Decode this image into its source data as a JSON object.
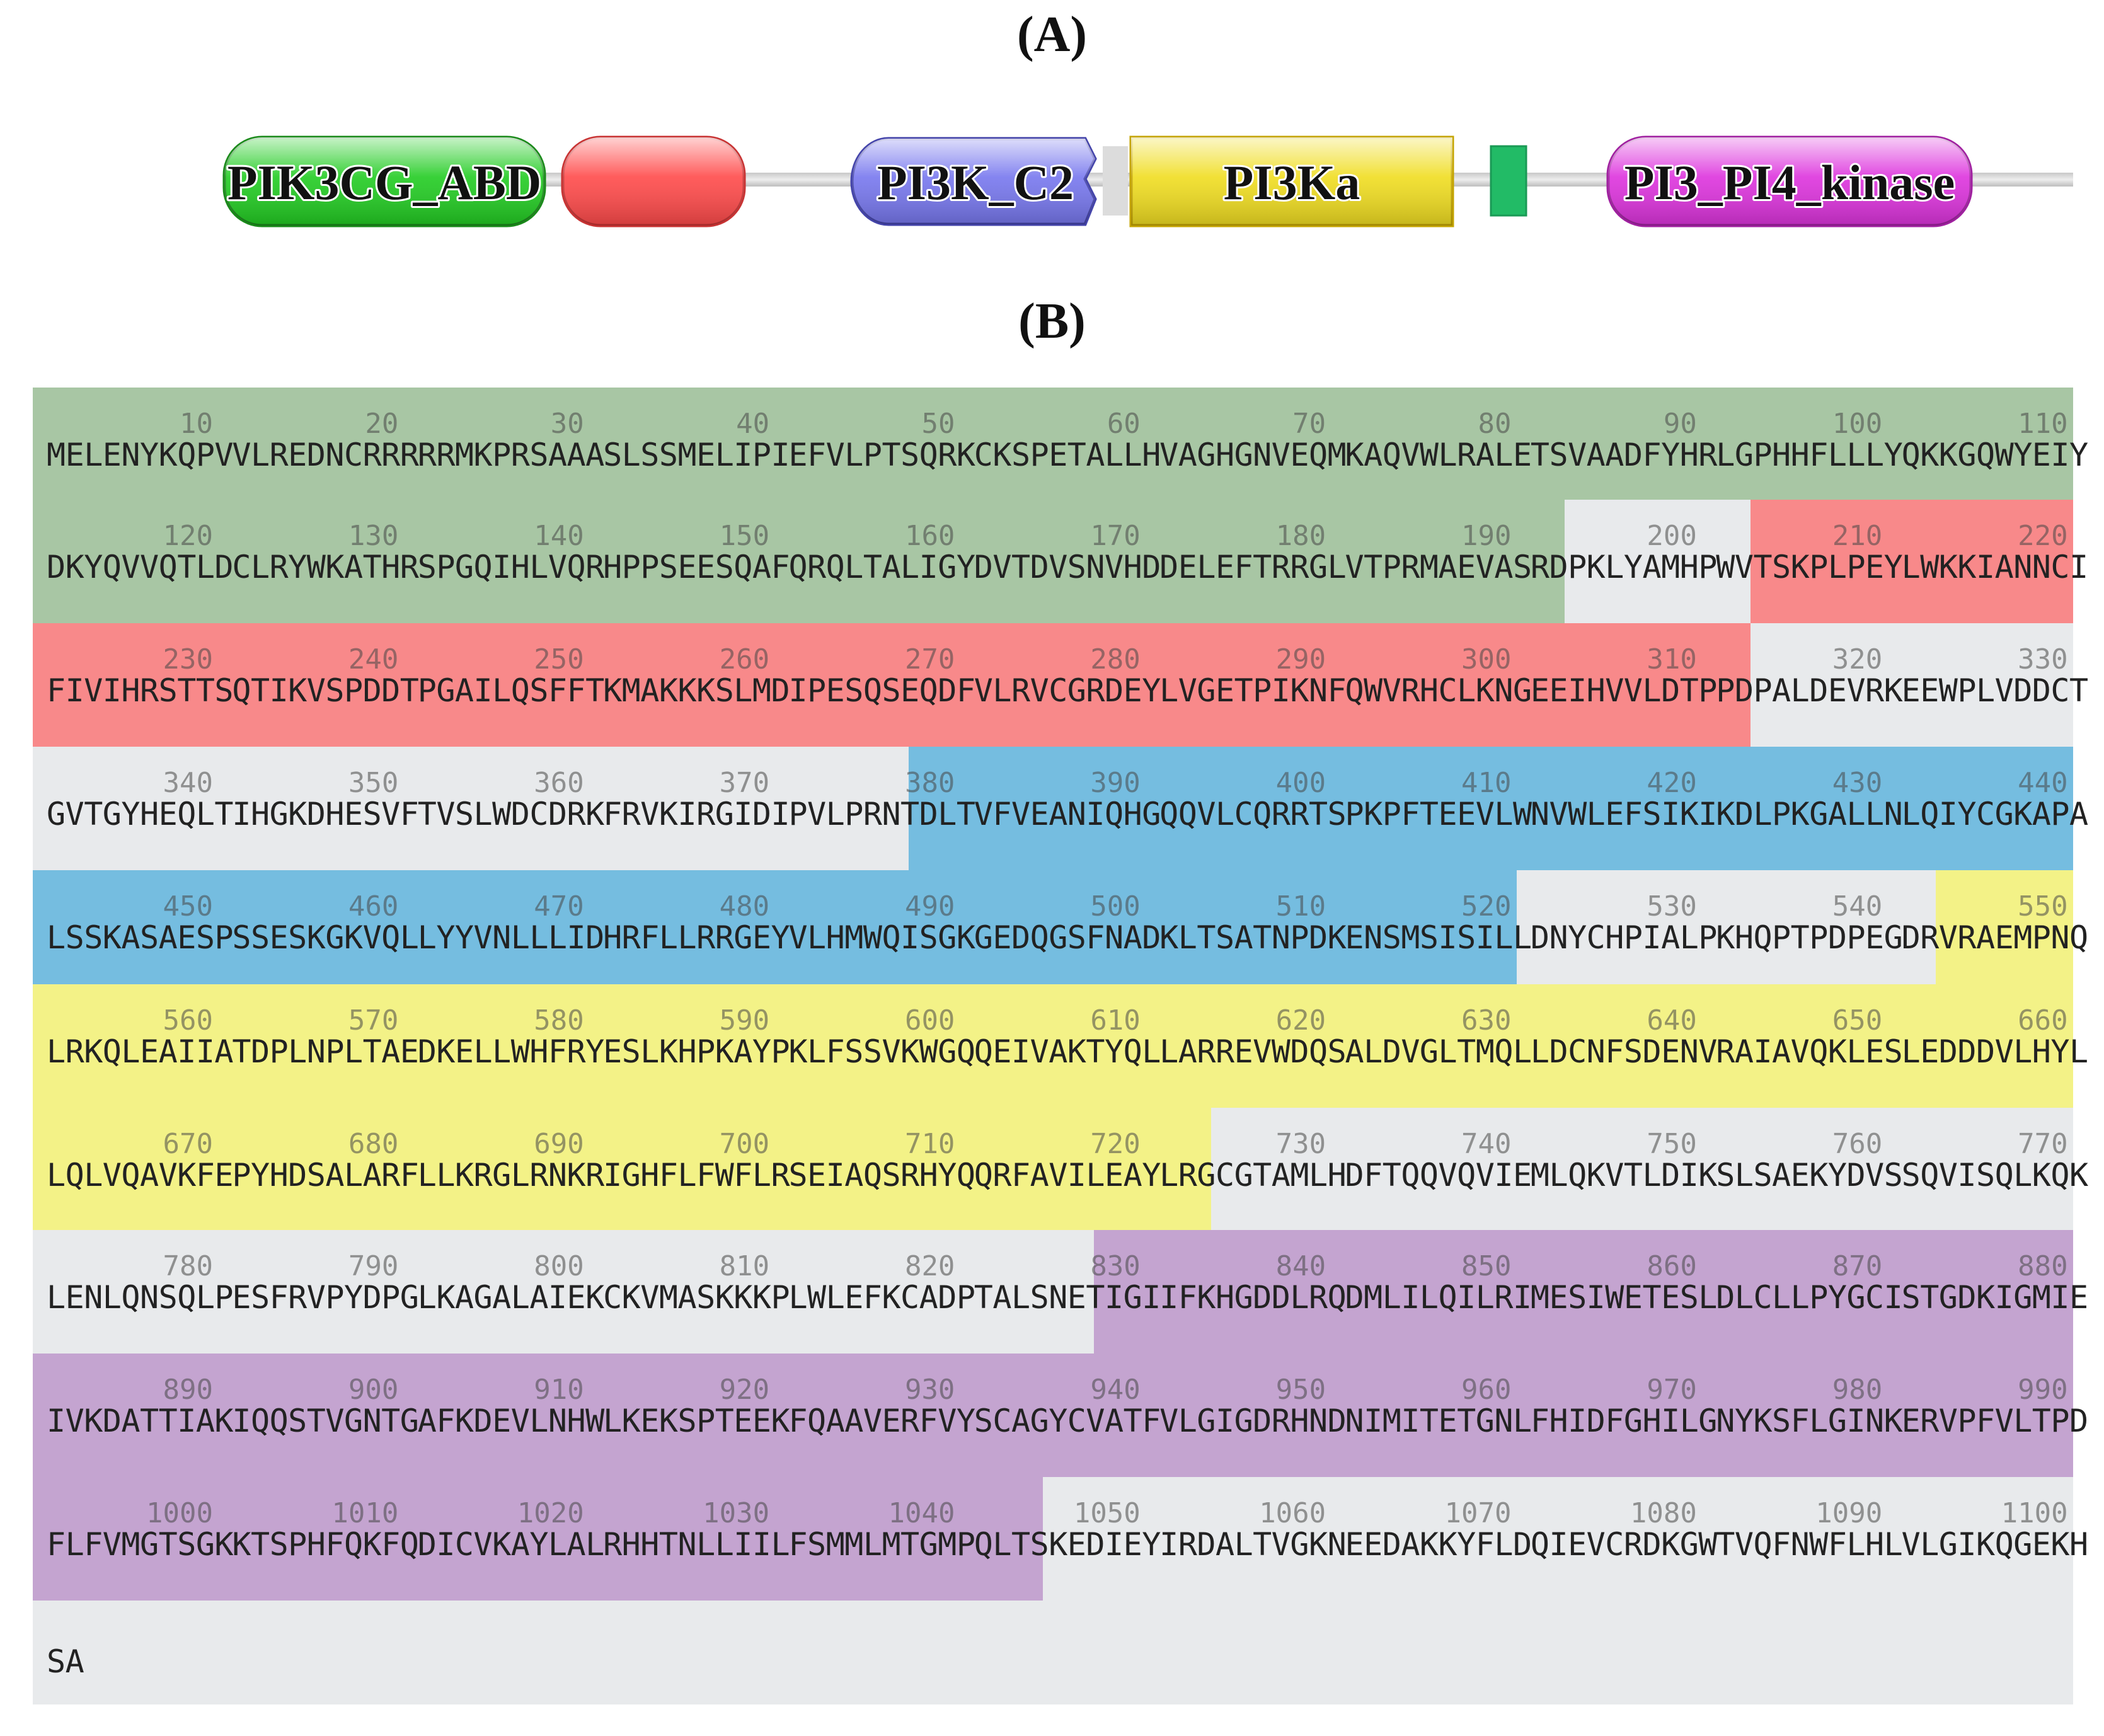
{
  "panel_labels": {
    "a": "(A)",
    "b": "(B)"
  },
  "domain_map": {
    "domains": [
      {
        "name": "PIK3CG_ABD",
        "label": "PIK3CG_ABD",
        "color": "#22cc22",
        "text_color": "#111111"
      },
      {
        "name": "red-domain",
        "label": "",
        "color": "#ff4a4a"
      },
      {
        "name": "PI3K_C2",
        "label": "PI3K_C2",
        "color": "#7777ee",
        "text_color": "#111111"
      },
      {
        "name": "PI3Ka",
        "label": "PI3Ka",
        "color": "#f0dd20",
        "text_color": "#111111"
      },
      {
        "name": "small-green-box",
        "label": "",
        "color": "#22bb66"
      },
      {
        "name": "PI3_PI4_kinase",
        "label": "PI3_PI4_kinase",
        "color": "#dd33dd",
        "text_color": "#111111"
      }
    ]
  },
  "sequence": {
    "domain_colors": {
      "PIK3CG_ABD": "#a8c6a4",
      "RBD": "#f8898a",
      "PI3K_C2": "#75bde0",
      "PI3Ka": "#f3f287",
      "PI3_PI4_kinase": "#c4a4d0",
      "none": "#e8eaec"
    },
    "domain_ranges": [
      {
        "domain": "PIK3CG_ABD",
        "start": 1,
        "end": 192
      },
      {
        "domain": "none",
        "start": 193,
        "end": 202
      },
      {
        "domain": "RBD",
        "start": 203,
        "end": 312
      },
      {
        "domain": "none",
        "start": 313,
        "end": 377
      },
      {
        "domain": "PI3K_C2",
        "start": 378,
        "end": 520
      },
      {
        "domain": "none",
        "start": 521,
        "end": 542
      },
      {
        "domain": "PI3Ka",
        "start": 543,
        "end": 723
      },
      {
        "domain": "none",
        "start": 724,
        "end": 827
      },
      {
        "domain": "PI3_PI4_kinase",
        "start": 828,
        "end": 1044
      },
      {
        "domain": "none",
        "start": 1045,
        "end": 1102
      }
    ],
    "rows": [
      {
        "groups": [
          {
            "number": "10",
            "residues": "MELENYKQPV"
          },
          {
            "number": "20",
            "residues": "VLREDNCRRR"
          },
          {
            "number": "30",
            "residues": "RRMKPRSAAA"
          },
          {
            "number": "40",
            "residues": "SLSSMELIPI"
          },
          {
            "number": "50",
            "residues": "EFVLPTSQRK"
          },
          {
            "number": "60",
            "residues": "CKSPETALLH"
          },
          {
            "number": "70",
            "residues": "VAGHGNVEQM"
          },
          {
            "number": "80",
            "residues": "KAQVWLRALE"
          },
          {
            "number": "90",
            "residues": "TSVAADFYHR"
          },
          {
            "number": "100",
            "residues": "LGPHHFLLLY"
          },
          {
            "number": "110",
            "residues": "QKKGQWYEIY"
          }
        ]
      },
      {
        "groups": [
          {
            "number": "120",
            "residues": "DKYQVVQTLD"
          },
          {
            "number": "130",
            "residues": "CLRYWKATHR"
          },
          {
            "number": "140",
            "residues": "SPGQIHLVQR"
          },
          {
            "number": "150",
            "residues": "HPPSEESQAF"
          },
          {
            "number": "160",
            "residues": "QRQLTALIGY"
          },
          {
            "number": "170",
            "residues": "DVTDVSNVHD"
          },
          {
            "number": "180",
            "residues": "DELEFTRRGL"
          },
          {
            "number": "190",
            "residues": "VTPRMAEVAS"
          },
          {
            "number": "200",
            "residues": "RDPKLYAMHP"
          },
          {
            "number": "210",
            "residues": "WVTSKPLPEY"
          },
          {
            "number": "220",
            "residues": "LWKKIANNCI"
          }
        ]
      },
      {
        "groups": [
          {
            "number": "230",
            "residues": "FIVIHRSTTS"
          },
          {
            "number": "240",
            "residues": "QTIKVSPDDT"
          },
          {
            "number": "250",
            "residues": "PGAILQSFFT"
          },
          {
            "number": "260",
            "residues": "KMAKKKSLMD"
          },
          {
            "number": "270",
            "residues": "IPESQSEQDF"
          },
          {
            "number": "280",
            "residues": "VLRVCGRDEY"
          },
          {
            "number": "290",
            "residues": "LVGETPIKNF"
          },
          {
            "number": "300",
            "residues": "QWVRHCLKNG"
          },
          {
            "number": "310",
            "residues": "EEIHVVLDTP"
          },
          {
            "number": "320",
            "residues": "PDPALDEVRK"
          },
          {
            "number": "330",
            "residues": "EEWPLVDDCT"
          }
        ]
      },
      {
        "groups": [
          {
            "number": "340",
            "residues": "GVTGYHEQLT"
          },
          {
            "number": "350",
            "residues": "IHGKDHESVF"
          },
          {
            "number": "360",
            "residues": "TVSLWDCDRK"
          },
          {
            "number": "370",
            "residues": "FRVKIRGIDI"
          },
          {
            "number": "380",
            "residues": "PVLPRNTDLT"
          },
          {
            "number": "390",
            "residues": "VFVEANIQHG"
          },
          {
            "number": "400",
            "residues": "QQVLCQRRTS"
          },
          {
            "number": "410",
            "residues": "PKPFTEEVLW"
          },
          {
            "number": "420",
            "residues": "NVWLEFSIKI"
          },
          {
            "number": "430",
            "residues": "KDLPKGALLN"
          },
          {
            "number": "440",
            "residues": "LQIYCGKAPA"
          }
        ]
      },
      {
        "groups": [
          {
            "number": "450",
            "residues": "LSSKASAESP"
          },
          {
            "number": "460",
            "residues": "SSESKGKVQL"
          },
          {
            "number": "470",
            "residues": "LYYVNLLLID"
          },
          {
            "number": "480",
            "residues": "HRFLLRRGEY"
          },
          {
            "number": "490",
            "residues": "VLHMWQISGK"
          },
          {
            "number": "500",
            "residues": "GEDQGSFNAD"
          },
          {
            "number": "510",
            "residues": "KLTSATNPDK"
          },
          {
            "number": "520",
            "residues": "ENSMSISILL"
          },
          {
            "number": "530",
            "residues": "DNYCHPIALP"
          },
          {
            "number": "540",
            "residues": "KHQPTPDPEG"
          },
          {
            "number": "550",
            "residues": "DRVRAEMPNQ"
          }
        ]
      },
      {
        "groups": [
          {
            "number": "560",
            "residues": "LRKQLEAIIA"
          },
          {
            "number": "570",
            "residues": "TDPLNPLTAE"
          },
          {
            "number": "580",
            "residues": "DKELLWHFRY"
          },
          {
            "number": "590",
            "residues": "ESLKHPKAYP"
          },
          {
            "number": "600",
            "residues": "KLFSSVKWGQ"
          },
          {
            "number": "610",
            "residues": "QEIVAKTYQL"
          },
          {
            "number": "620",
            "residues": "LARREVWDQS"
          },
          {
            "number": "630",
            "residues": "ALDVGLTMQL"
          },
          {
            "number": "640",
            "residues": "LDCNFSDENV"
          },
          {
            "number": "650",
            "residues": "RAIAVQKLES"
          },
          {
            "number": "660",
            "residues": "LEDDDVLHYL"
          }
        ]
      },
      {
        "groups": [
          {
            "number": "670",
            "residues": "LQLVQAVKFE"
          },
          {
            "number": "680",
            "residues": "PYHDSALARF"
          },
          {
            "number": "690",
            "residues": "LLKRGLRNKR"
          },
          {
            "number": "700",
            "residues": "IGHFLFWFLR"
          },
          {
            "number": "710",
            "residues": "SEIAQSRHYQ"
          },
          {
            "number": "720",
            "residues": "QRFAVILEAY"
          },
          {
            "number": "730",
            "residues": "LRGCGTAMLH"
          },
          {
            "number": "740",
            "residues": "DFTQQVQVIE"
          },
          {
            "number": "750",
            "residues": "MLQKVTLDIK"
          },
          {
            "number": "760",
            "residues": "SLSAEKYDVS"
          },
          {
            "number": "770",
            "residues": "SQVISQLKQK"
          }
        ]
      },
      {
        "groups": [
          {
            "number": "780",
            "residues": "LENLQNSQLP"
          },
          {
            "number": "790",
            "residues": "ESFRVPYDPG"
          },
          {
            "number": "800",
            "residues": "LKAGALAIEK"
          },
          {
            "number": "810",
            "residues": "CKVMASKKKP"
          },
          {
            "number": "820",
            "residues": "LWLEFKCADP"
          },
          {
            "number": "830",
            "residues": "TALSNETIGI"
          },
          {
            "number": "840",
            "residues": "IFKHGDDLRQ"
          },
          {
            "number": "850",
            "residues": "DMLILQILRI"
          },
          {
            "number": "860",
            "residues": "MESIWETESL"
          },
          {
            "number": "870",
            "residues": "DLCLLPYGCI"
          },
          {
            "number": "880",
            "residues": "STGDKIGMIE"
          }
        ]
      },
      {
        "groups": [
          {
            "number": "890",
            "residues": "IVKDATTIAK"
          },
          {
            "number": "900",
            "residues": "IQQSTVGNTG"
          },
          {
            "number": "910",
            "residues": "AFKDEVLNHW"
          },
          {
            "number": "920",
            "residues": "LKEKSPTEEK"
          },
          {
            "number": "930",
            "residues": "FQAAVERFVY"
          },
          {
            "number": "940",
            "residues": "SCAGYCVATF"
          },
          {
            "number": "950",
            "residues": "VLGIGDRHND"
          },
          {
            "number": "960",
            "residues": "NIMITETGNL"
          },
          {
            "number": "970",
            "residues": "FHIDFGHILG"
          },
          {
            "number": "980",
            "residues": "NYKSFLGINK"
          },
          {
            "number": "990",
            "residues": "ERVPFVLTPD"
          }
        ]
      },
      {
        "groups": [
          {
            "number": "1000",
            "residues": "FLFVMGTSGK"
          },
          {
            "number": "1010",
            "residues": "KTSPHFQKFQ"
          },
          {
            "number": "1020",
            "residues": "DICVKAYLAL"
          },
          {
            "number": "1030",
            "residues": "RHHTNLLIIL"
          },
          {
            "number": "1040",
            "residues": "FSMMLMTGMP"
          },
          {
            "number": "1050",
            "residues": "QLTSKEDIEY"
          },
          {
            "number": "1060",
            "residues": "IRDALTVGKN"
          },
          {
            "number": "1070",
            "residues": "EEDAKKYFLD"
          },
          {
            "number": "1080",
            "residues": "QIEVCRDKGW"
          },
          {
            "number": "1090",
            "residues": "TVQFNWFLHL"
          },
          {
            "number": "1100",
            "residues": "VLGIKQGEKH"
          }
        ]
      },
      {
        "groups": [
          {
            "number": "",
            "residues": "SA"
          }
        ]
      }
    ]
  }
}
